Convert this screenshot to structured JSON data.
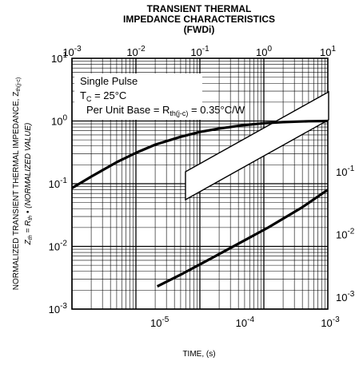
{
  "chart_data": {
    "type": "line",
    "title": [
      "TRANSIENT THERMAL",
      "IMPEDANCE CHARACTERISTICS",
      "(FWDi)"
    ],
    "xlabel": "TIME, (s)",
    "ylabel_line1": "NORMALIZED TRANSIENT THERMAL IMPEDANCE, Z",
    "ylabel_line1_sub": "th(j-c)",
    "ylabel_line2_z": "Z",
    "ylabel_line2_zsub": "th",
    "ylabel_line2_mid": " = R",
    "ylabel_line2_rsub": "th",
    "ylabel_line2_end": " • (NORMALIZED VALUE)",
    "log_scale": true,
    "grid": true,
    "top_axis": {
      "ticks": [
        {
          "base": "10",
          "exp": "-3"
        },
        {
          "base": "10",
          "exp": "-2"
        },
        {
          "base": "10",
          "exp": "-1"
        },
        {
          "base": "10",
          "exp": "0"
        },
        {
          "base": "10",
          "exp": "1"
        }
      ],
      "range": [
        0.001,
        10
      ]
    },
    "bottom_axis": {
      "ticks": [
        {
          "base": "10",
          "exp": "-5"
        },
        {
          "base": "10",
          "exp": "-4"
        },
        {
          "base": "10",
          "exp": "-3"
        }
      ],
      "range": [
        1e-06,
        0.001
      ]
    },
    "left_axis": {
      "ticks": [
        {
          "base": "10",
          "exp": "1"
        },
        {
          "base": "10",
          "exp": "0"
        },
        {
          "base": "10",
          "exp": "-1"
        },
        {
          "base": "10",
          "exp": "-2"
        },
        {
          "base": "10",
          "exp": "-3"
        }
      ],
      "range": [
        0.001,
        10
      ]
    },
    "right_axis": {
      "ticks": [
        {
          "base": "10",
          "exp": "-1"
        },
        {
          "base": "10",
          "exp": "-2"
        },
        {
          "base": "10",
          "exp": "-3"
        }
      ]
    },
    "annotations": {
      "line1": "Single Pulse",
      "line2_t": "T",
      "line2_sub": "C",
      "line2_rest": " = 25°C",
      "line3_a": "Per Unit Base = R",
      "line3_sub": "th(j-c)",
      "line3_b": " = 0.35°C/W"
    },
    "series": [
      {
        "axis": "top",
        "x": [
          0.001,
          0.002,
          0.005,
          0.01,
          0.02,
          0.05,
          0.1,
          0.2,
          0.5,
          1,
          2,
          5,
          10
        ],
        "y": [
          0.085,
          0.13,
          0.22,
          0.31,
          0.42,
          0.56,
          0.67,
          0.76,
          0.86,
          0.92,
          0.96,
          0.99,
          1.0
        ]
      },
      {
        "axis": "bottom",
        "x": [
          1e-05,
          2e-05,
          5e-05,
          0.0001,
          0.0002,
          0.0005,
          0.001
        ],
        "y": [
          0.0023,
          0.0037,
          0.0072,
          0.012,
          0.02,
          0.042,
          0.08
        ]
      }
    ]
  }
}
